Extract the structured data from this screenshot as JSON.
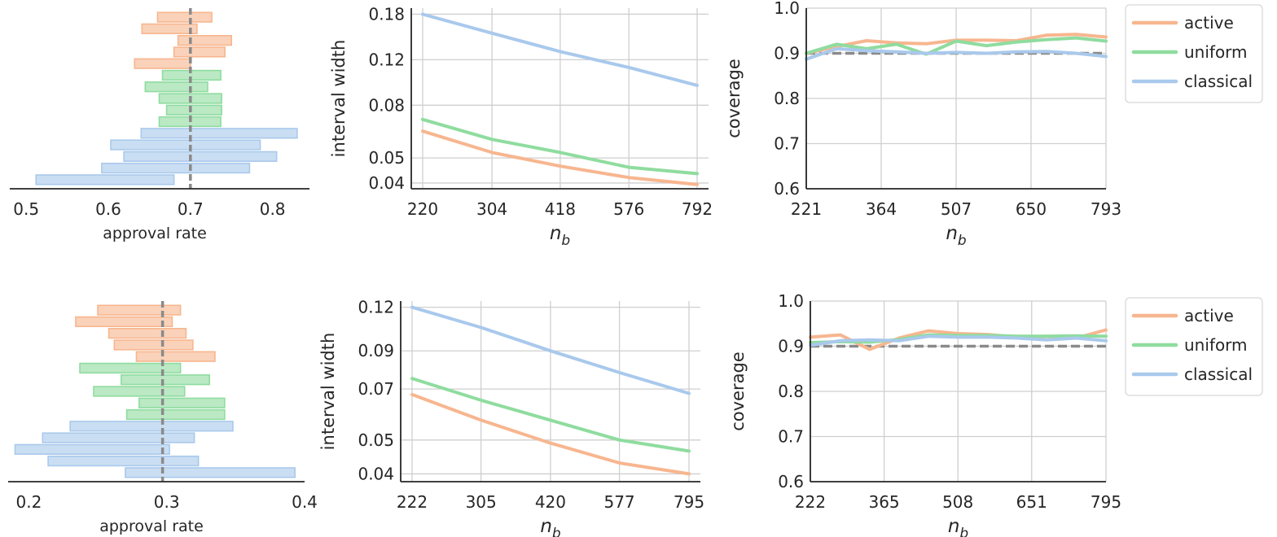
{
  "colors": {
    "active": "#f7b68f",
    "uniform": "#8fdc9f",
    "classical": "#a9c9ec",
    "grid": "#cfcfcf",
    "reference": "#8a8a8a",
    "axis": "#262626"
  },
  "chart_data": [
    {
      "type": "interval",
      "panel": "top-left",
      "xlabel": "approval rate",
      "xlim": [
        0.48,
        0.845
      ],
      "xticks": [
        0.5,
        0.6,
        0.7,
        0.8
      ],
      "xtick_labels": [
        "0.5",
        "0.6",
        "0.7",
        "0.8"
      ],
      "reference": 0.7,
      "intervals": [
        {
          "method": "active",
          "lo": 0.66,
          "hi": 0.726
        },
        {
          "method": "active",
          "lo": 0.641,
          "hi": 0.708
        },
        {
          "method": "active",
          "lo": 0.685,
          "hi": 0.75
        },
        {
          "method": "active",
          "lo": 0.68,
          "hi": 0.742
        },
        {
          "method": "active",
          "lo": 0.632,
          "hi": 0.7
        },
        {
          "method": "uniform",
          "lo": 0.666,
          "hi": 0.737
        },
        {
          "method": "uniform",
          "lo": 0.645,
          "hi": 0.721
        },
        {
          "method": "uniform",
          "lo": 0.662,
          "hi": 0.738
        },
        {
          "method": "uniform",
          "lo": 0.671,
          "hi": 0.738
        },
        {
          "method": "uniform",
          "lo": 0.662,
          "hi": 0.737
        },
        {
          "method": "classical",
          "lo": 0.64,
          "hi": 0.83
        },
        {
          "method": "classical",
          "lo": 0.603,
          "hi": 0.785
        },
        {
          "method": "classical",
          "lo": 0.619,
          "hi": 0.805
        },
        {
          "method": "classical",
          "lo": 0.592,
          "hi": 0.772
        },
        {
          "method": "classical",
          "lo": 0.512,
          "hi": 0.68
        }
      ]
    },
    {
      "type": "line",
      "panel": "top-middle",
      "xlabel": "n",
      "xlabel_sub": "b",
      "ylabel": "interval width",
      "yscale": "log",
      "x": [
        220,
        304,
        418,
        576,
        792
      ],
      "xtick_labels": [
        "220",
        "304",
        "418",
        "576",
        "792"
      ],
      "ylim": [
        0.038,
        0.19
      ],
      "yticks": [
        0.04,
        0.05,
        0.08,
        0.12,
        0.18
      ],
      "ytick_labels": [
        "0.04",
        "0.05",
        "0.08",
        "0.12",
        "0.18"
      ],
      "series": [
        {
          "name": "active",
          "values": [
            0.0635,
            0.0525,
            0.0465,
            0.042,
            0.0395
          ]
        },
        {
          "name": "uniform",
          "values": [
            0.0705,
            0.059,
            0.0525,
            0.046,
            0.0435
          ]
        },
        {
          "name": "classical",
          "values": [
            0.18,
            0.152,
            0.129,
            0.112,
            0.0955
          ]
        }
      ]
    },
    {
      "type": "line",
      "panel": "top-right",
      "xlabel": "n",
      "xlabel_sub": "b",
      "ylabel": "coverage",
      "x": [
        221,
        364,
        507,
        650,
        793
      ],
      "xtick_labels": [
        "221",
        "364",
        "507",
        "650",
        "793"
      ],
      "ylim": [
        0.6,
        1.0
      ],
      "yticks": [
        0.6,
        0.7,
        0.8,
        0.9,
        1.0
      ],
      "ytick_labels": [
        "0.6",
        "0.7",
        "0.8",
        "0.9",
        "1.0"
      ],
      "reference": 0.9,
      "legend": "outside-right",
      "series": [
        {
          "name": "active",
          "x": [
            221,
            279,
            336,
            393,
            450,
            507,
            565,
            622,
            679,
            736,
            793
          ],
          "values": [
            0.9,
            0.915,
            0.928,
            0.923,
            0.921,
            0.929,
            0.929,
            0.928,
            0.94,
            0.942,
            0.936
          ]
        },
        {
          "name": "uniform",
          "x": [
            221,
            279,
            336,
            393,
            450,
            507,
            565,
            622,
            679,
            736,
            793
          ],
          "values": [
            0.9,
            0.92,
            0.91,
            0.92,
            0.898,
            0.927,
            0.917,
            0.925,
            0.93,
            0.934,
            0.927
          ]
        },
        {
          "name": "classical",
          "x": [
            221,
            279,
            336,
            393,
            450,
            507,
            565,
            622,
            679,
            736,
            793
          ],
          "values": [
            0.887,
            0.91,
            0.906,
            0.903,
            0.9,
            0.902,
            0.9,
            0.903,
            0.904,
            0.9,
            0.893
          ]
        }
      ]
    },
    {
      "type": "interval",
      "panel": "bottom-left",
      "xlabel": "approval rate",
      "xlim": [
        0.185,
        0.4
      ],
      "xticks": [
        0.2,
        0.3,
        0.4
      ],
      "xtick_labels": [
        "0.2",
        "0.3",
        "0.4"
      ],
      "reference": 0.297,
      "intervals": [
        {
          "method": "active",
          "lo": 0.25,
          "hi": 0.31
        },
        {
          "method": "active",
          "lo": 0.234,
          "hi": 0.304
        },
        {
          "method": "active",
          "lo": 0.258,
          "hi": 0.314
        },
        {
          "method": "active",
          "lo": 0.262,
          "hi": 0.319
        },
        {
          "method": "active",
          "lo": 0.278,
          "hi": 0.335
        },
        {
          "method": "uniform",
          "lo": 0.237,
          "hi": 0.31
        },
        {
          "method": "uniform",
          "lo": 0.267,
          "hi": 0.331
        },
        {
          "method": "uniform",
          "lo": 0.247,
          "hi": 0.313
        },
        {
          "method": "uniform",
          "lo": 0.28,
          "hi": 0.342
        },
        {
          "method": "uniform",
          "lo": 0.271,
          "hi": 0.342
        },
        {
          "method": "classical",
          "lo": 0.23,
          "hi": 0.348
        },
        {
          "method": "classical",
          "lo": 0.21,
          "hi": 0.32
        },
        {
          "method": "classical",
          "lo": 0.19,
          "hi": 0.302
        },
        {
          "method": "classical",
          "lo": 0.214,
          "hi": 0.323
        },
        {
          "method": "classical",
          "lo": 0.27,
          "hi": 0.393
        }
      ]
    },
    {
      "type": "line",
      "panel": "bottom-middle",
      "xlabel": "n",
      "xlabel_sub": "b",
      "ylabel": "interval width",
      "yscale": "log",
      "x": [
        222,
        305,
        420,
        577,
        795
      ],
      "xtick_labels": [
        "222",
        "305",
        "420",
        "577",
        "795"
      ],
      "ylim": [
        0.038,
        0.125
      ],
      "yticks": [
        0.04,
        0.05,
        0.07,
        0.09,
        0.12
      ],
      "ytick_labels": [
        "0.04",
        "0.05",
        "0.07",
        "0.09",
        "0.12"
      ],
      "series": [
        {
          "name": "active",
          "values": [
            0.0675,
            0.057,
            0.049,
            0.043,
            0.04
          ]
        },
        {
          "name": "uniform",
          "values": [
            0.075,
            0.065,
            0.057,
            0.05,
            0.0465
          ]
        },
        {
          "name": "classical",
          "values": [
            0.12,
            0.105,
            0.09,
            0.078,
            0.068
          ]
        }
      ]
    },
    {
      "type": "line",
      "panel": "bottom-right",
      "xlabel": "n",
      "xlabel_sub": "b",
      "ylabel": "coverage",
      "x": [
        222,
        365,
        508,
        651,
        795
      ],
      "xtick_labels": [
        "222",
        "365",
        "508",
        "651",
        "795"
      ],
      "ylim": [
        0.6,
        1.0
      ],
      "yticks": [
        0.6,
        0.7,
        0.8,
        0.9,
        1.0
      ],
      "ytick_labels": [
        "0.6",
        "0.7",
        "0.8",
        "0.9",
        "1.0"
      ],
      "reference": 0.9,
      "legend": "outside-right",
      "series": [
        {
          "name": "active",
          "x": [
            222,
            280,
            337,
            394,
            451,
            508,
            566,
            623,
            680,
            737,
            795
          ],
          "values": [
            0.92,
            0.925,
            0.893,
            0.918,
            0.934,
            0.928,
            0.926,
            0.92,
            0.922,
            0.918,
            0.936
          ]
        },
        {
          "name": "uniform",
          "x": [
            222,
            280,
            337,
            394,
            451,
            508,
            566,
            623,
            680,
            737,
            795
          ],
          "values": [
            0.908,
            0.91,
            0.909,
            0.915,
            0.925,
            0.924,
            0.924,
            0.922,
            0.922,
            0.923,
            0.922
          ]
        },
        {
          "name": "classical",
          "x": [
            222,
            280,
            337,
            394,
            451,
            508,
            566,
            623,
            680,
            737,
            795
          ],
          "values": [
            0.902,
            0.912,
            0.914,
            0.912,
            0.922,
            0.92,
            0.92,
            0.918,
            0.914,
            0.918,
            0.912
          ]
        }
      ]
    }
  ],
  "legends": [
    {
      "items": [
        "active",
        "uniform",
        "classical"
      ]
    },
    {
      "items": [
        "active",
        "uniform",
        "classical"
      ]
    }
  ]
}
